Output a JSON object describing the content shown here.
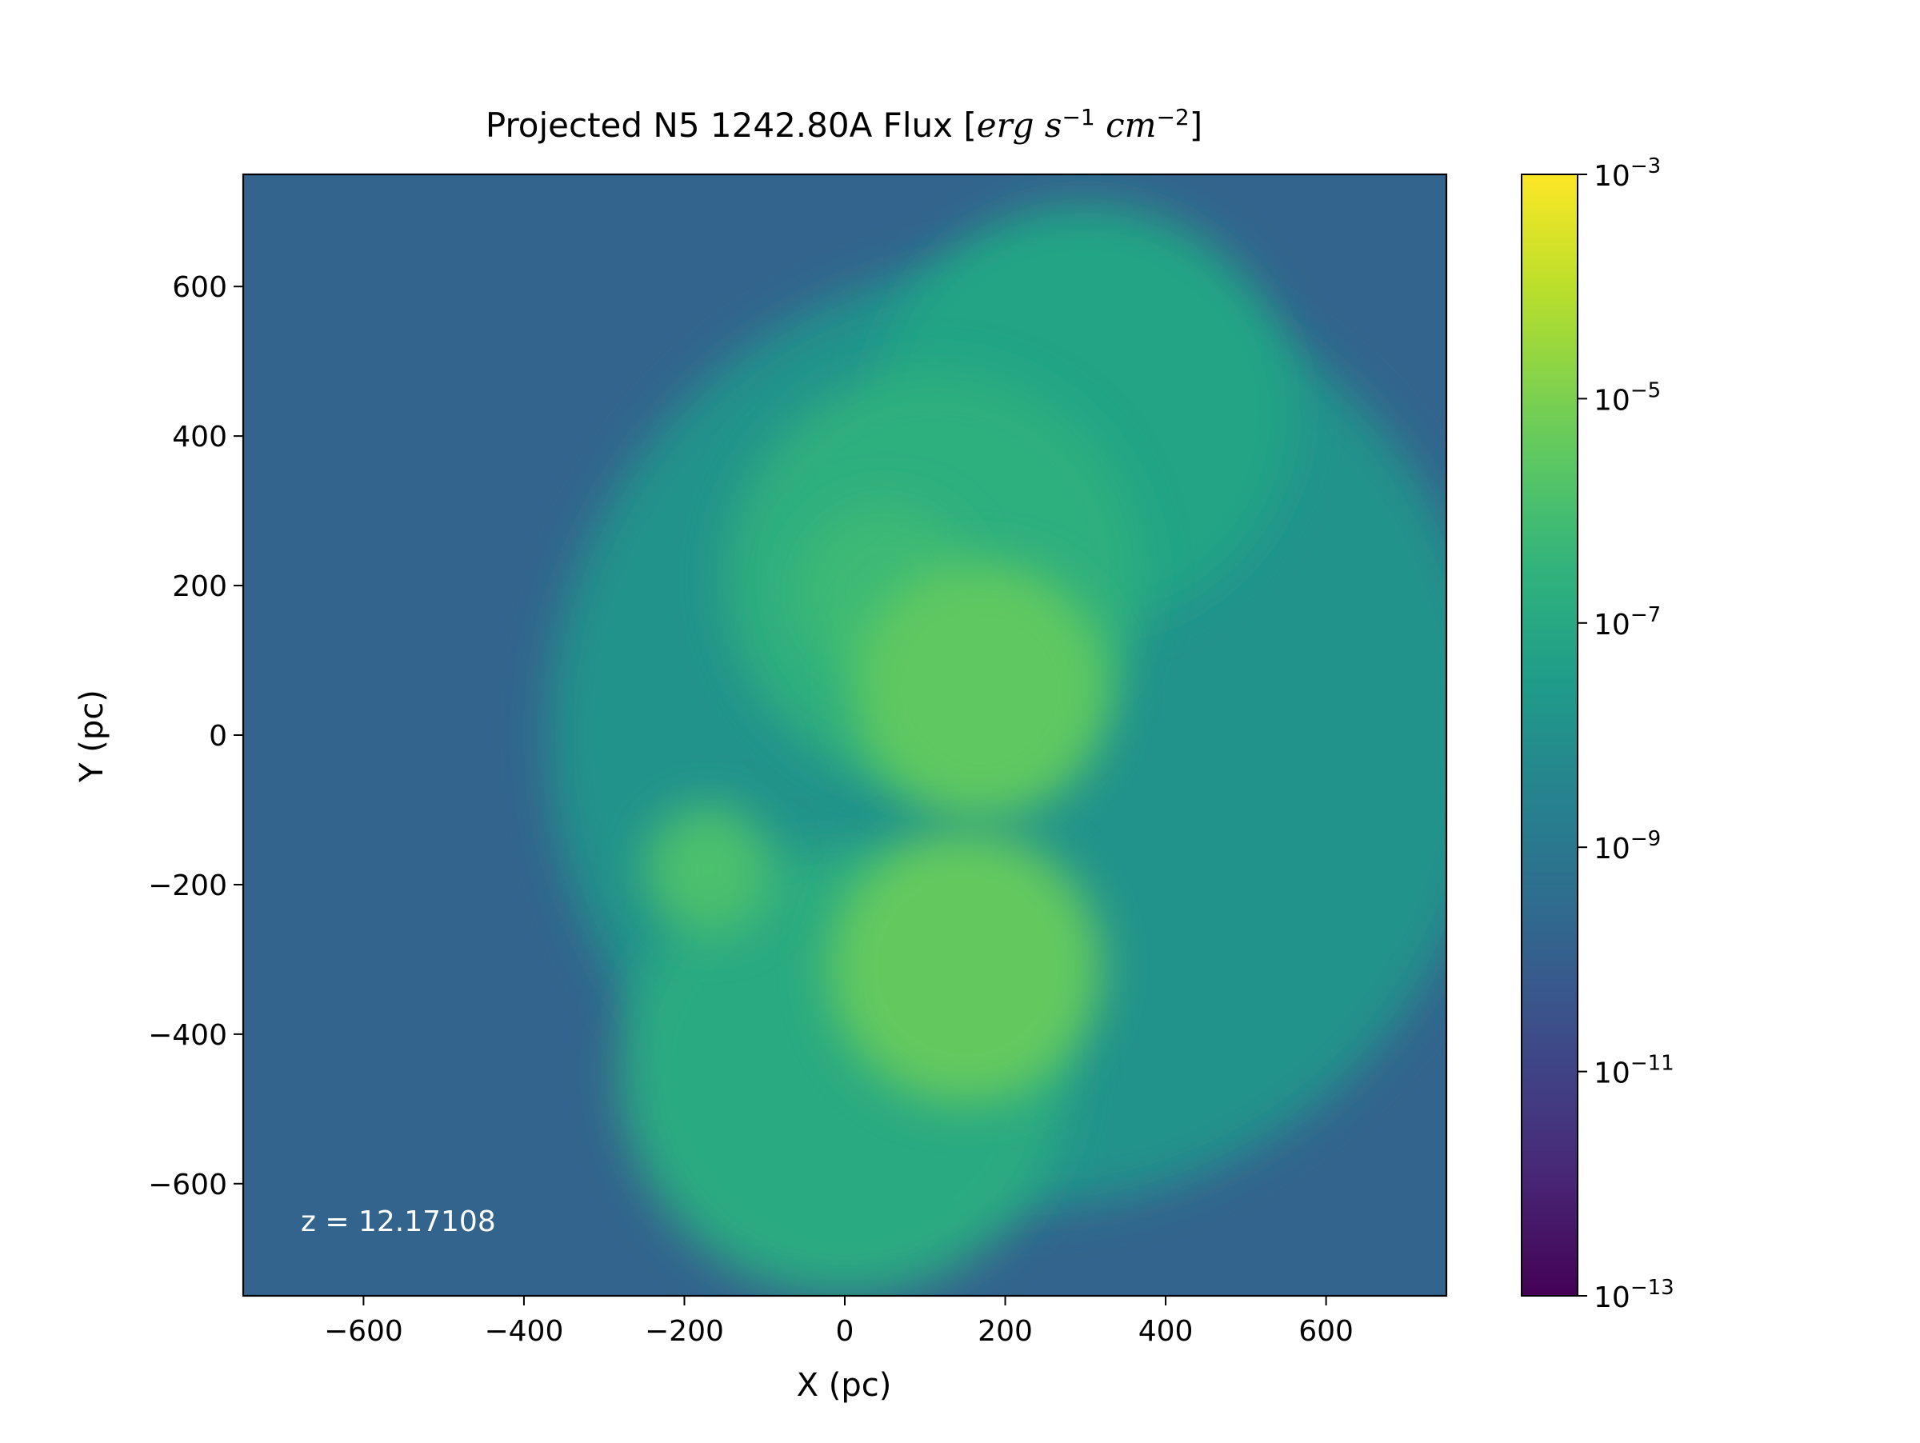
{
  "chart_data": {
    "type": "heatmap",
    "title": "Projected N5 1242.80A Flux",
    "title_units": {
      "base": "erg",
      "s_exp": "−1",
      "cm_exp": "−2"
    },
    "xlabel": "X (pc)",
    "ylabel": "Y (pc)",
    "xlim": [
      -750,
      750
    ],
    "ylim": [
      -750,
      750
    ],
    "x_ticks": [
      -600,
      -400,
      -200,
      0,
      200,
      400,
      600
    ],
    "x_tick_labels": [
      "−600",
      "−400",
      "−200",
      "0",
      "200",
      "400",
      "600"
    ],
    "y_ticks": [
      -600,
      -400,
      -200,
      0,
      200,
      400,
      600
    ],
    "y_tick_labels": [
      "−600",
      "−400",
      "−200",
      "0",
      "200",
      "400",
      "600"
    ],
    "annotation": "z = 12.17108",
    "colorbar": {
      "colormap": "viridis",
      "scale": "log",
      "range": [
        1e-13,
        0.001
      ],
      "tick_exponents": [
        -3,
        -5,
        -7,
        -9,
        -11,
        -13
      ],
      "tick_exponent_labels": [
        "−3",
        "−5",
        "−7",
        "−9",
        "−11",
        "−13"
      ],
      "tick_base": "10"
    },
    "background_log10_flux": -9.8,
    "regions": [
      {
        "name": "outer-shell",
        "cx": 220,
        "cy": 0,
        "r": 590,
        "log10_flux": -7.9
      },
      {
        "name": "ne-shell",
        "cx": 300,
        "cy": 430,
        "r": 260,
        "log10_flux": -7.2
      },
      {
        "name": "lower-plume",
        "cx": 0,
        "cy": -450,
        "r": 280,
        "log10_flux": -6.9
      },
      {
        "name": "upper-arc",
        "cx": 110,
        "cy": 210,
        "r": 260,
        "log10_flux": -6.7
      },
      {
        "name": "north-blob",
        "cx": 50,
        "cy": 190,
        "r": 110,
        "log10_flux": -6.2
      },
      {
        "name": "central-blob",
        "cx": 170,
        "cy": 60,
        "r": 160,
        "log10_flux": -5.5
      },
      {
        "name": "west-lobe",
        "cx": -170,
        "cy": -180,
        "r": 80,
        "log10_flux": -5.9
      },
      {
        "name": "southern-blob",
        "cx": 150,
        "cy": -310,
        "r": 170,
        "log10_flux": -5.4
      }
    ]
  }
}
